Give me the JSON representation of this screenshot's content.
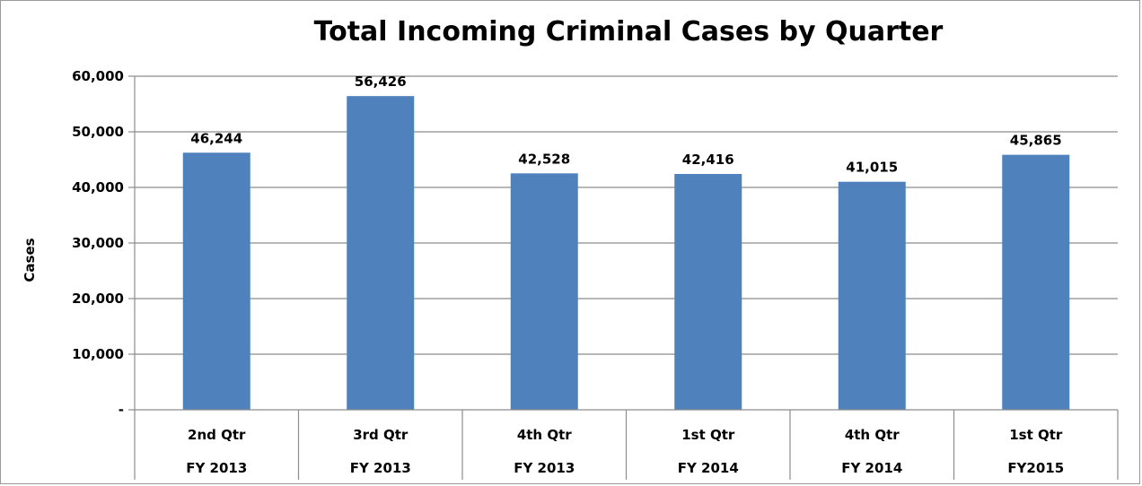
{
  "chart_data": {
    "type": "bar",
    "title": "Total Incoming Criminal Cases by Quarter",
    "ylabel": "Cases",
    "xlabel": "",
    "ylim": [
      0,
      60000
    ],
    "yticks": [
      0,
      10000,
      20000,
      30000,
      40000,
      50000,
      60000
    ],
    "ytick_labels": [
      "-",
      "10,000",
      "20,000",
      "30,000",
      "40,000",
      "50,000",
      "60,000"
    ],
    "grid": true,
    "legend": "none",
    "categories": [
      {
        "quarter": "2nd Qtr",
        "fy": "FY 2013"
      },
      {
        "quarter": "3rd Qtr",
        "fy": "FY 2013"
      },
      {
        "quarter": "4th Qtr",
        "fy": "FY 2013"
      },
      {
        "quarter": "1st Qtr",
        "fy": "FY 2014"
      },
      {
        "quarter": "4th Qtr",
        "fy": "FY 2014"
      },
      {
        "quarter": "1st Qtr",
        "fy": "FY2015"
      }
    ],
    "values": [
      46244,
      56426,
      42528,
      42416,
      41015,
      45865
    ],
    "value_labels": [
      "46,244",
      "56,426",
      "42,528",
      "42,416",
      "41,015",
      "45,865"
    ],
    "bar_color": "#4f81bd",
    "grid_color": "#8c8c8c"
  }
}
